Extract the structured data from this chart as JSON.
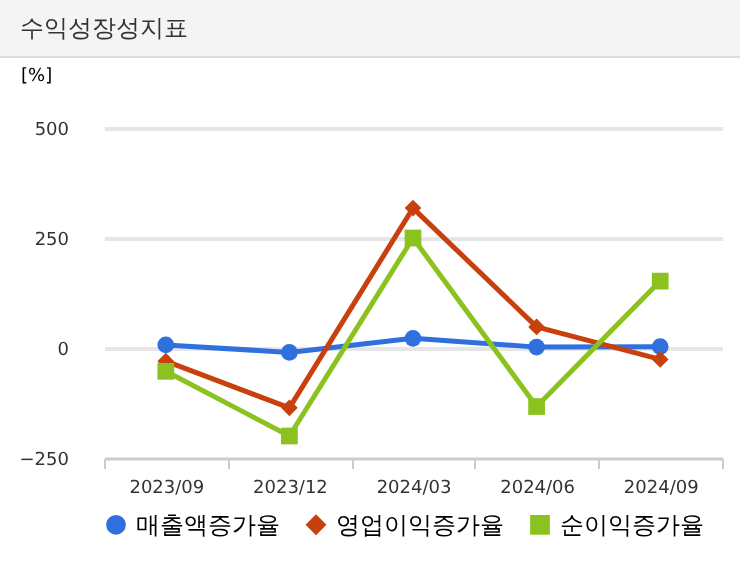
{
  "chart_data": {
    "type": "line",
    "title": "수익성장성지표",
    "ylabel": "[%]",
    "categories": [
      "2023/09",
      "2023/12",
      "2024/03",
      "2024/06",
      "2024/09"
    ],
    "series": [
      {
        "name": "매출액증가율",
        "color": "#2f6fde",
        "marker": "circle",
        "values": [
          7,
          -10,
          22,
          2,
          3
        ]
      },
      {
        "name": "영업이익증가율",
        "color": "#c8400e",
        "marker": "diamond",
        "values": [
          -30,
          -136,
          318,
          48,
          -26
        ]
      },
      {
        "name": "순이익증가율",
        "color": "#8cc21f",
        "marker": "square",
        "values": [
          -53,
          -200,
          250,
          -133,
          152
        ]
      }
    ],
    "ylim": [
      -250,
      500
    ],
    "yticks": [
      -250,
      0,
      250,
      500
    ],
    "grid": "y",
    "legend": "bottom"
  }
}
